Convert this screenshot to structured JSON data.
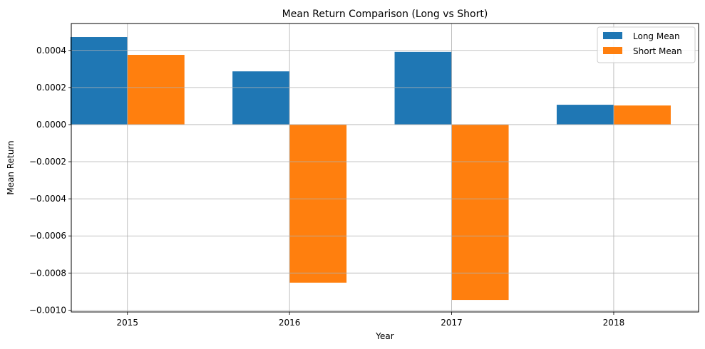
{
  "chart_data": {
    "type": "bar",
    "title": "Mean Return Comparison (Long vs Short)",
    "xlabel": "Year",
    "ylabel": "Mean Return",
    "categories": [
      "2015",
      "2016",
      "2017",
      "2018"
    ],
    "series": [
      {
        "name": "Long Mean",
        "color": "#1f77b4",
        "values": [
          0.000472,
          0.000287,
          0.000392,
          0.000107
        ]
      },
      {
        "name": "Short Mean",
        "color": "#ff7f0e",
        "values": [
          0.000376,
          -0.000852,
          -0.000945,
          0.000103
        ]
      }
    ],
    "ylim": [
      -0.00101,
      0.000545
    ],
    "yticks": [
      0.0004,
      0.0002,
      0.0,
      -0.0002,
      -0.0004,
      -0.0006,
      -0.0008,
      -0.001
    ],
    "ytick_labels": [
      "0.0004",
      "0.0002",
      "0.0000",
      "−0.0002",
      "−0.0004",
      "−0.0006",
      "−0.0008",
      "−0.0010"
    ],
    "grid": true,
    "legend_position": "top-right"
  }
}
